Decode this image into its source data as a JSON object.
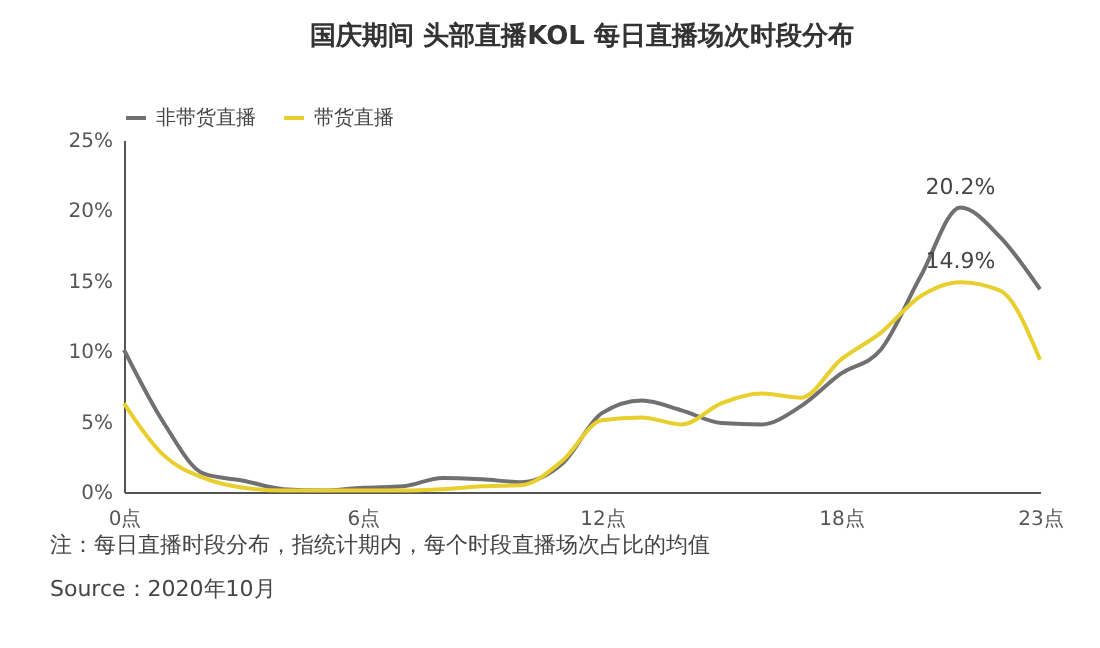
{
  "chart_data": {
    "type": "line",
    "title": "国庆期间 头部直播KOL 每日直播场次时段分布",
    "x": [
      0,
      1,
      2,
      3,
      4,
      5,
      6,
      7,
      8,
      9,
      10,
      11,
      12,
      13,
      14,
      15,
      16,
      17,
      18,
      19,
      20,
      21,
      22,
      23
    ],
    "series": [
      {
        "name": "非带货直播",
        "color": "#707070",
        "values": [
          10.1,
          4.9,
          1.3,
          0.8,
          0.2,
          0.1,
          0.3,
          0.4,
          1.0,
          0.9,
          0.7,
          2.0,
          5.6,
          6.5,
          5.8,
          4.9,
          4.8,
          6.1,
          8.4,
          10.1,
          15.3,
          20.2,
          18.1,
          14.4
        ]
      },
      {
        "name": "带货直播",
        "color": "#e8cf2e",
        "values": [
          6.3,
          2.6,
          1.0,
          0.3,
          0.1,
          0.1,
          0.1,
          0.1,
          0.2,
          0.4,
          0.5,
          2.2,
          5.1,
          5.3,
          4.8,
          6.3,
          7.0,
          6.7,
          9.4,
          11.3,
          13.9,
          14.9,
          14.3,
          9.4
        ]
      }
    ],
    "xlim": [
      0,
      23
    ],
    "xticks": [
      {
        "value": 0,
        "label": "0点"
      },
      {
        "value": 6,
        "label": "6点"
      },
      {
        "value": 12,
        "label": "12点"
      },
      {
        "value": 18,
        "label": "18点"
      },
      {
        "value": 23,
        "label": "23点"
      }
    ],
    "ylim": [
      0,
      25
    ],
    "yticks": [
      {
        "value": 0,
        "label": "0%"
      },
      {
        "value": 5,
        "label": "5%"
      },
      {
        "value": 10,
        "label": "10%"
      },
      {
        "value": 15,
        "label": "15%"
      },
      {
        "value": 20,
        "label": "20%"
      },
      {
        "value": 25,
        "label": "25%"
      }
    ],
    "legend": "top",
    "grid": false,
    "annotations": [
      {
        "text": "20.2%",
        "x": 21,
        "y": 20.2
      },
      {
        "text": "14.9%",
        "x": 21,
        "y": 14.9
      },
      "注：每日直播时段分布，指统计期内，每个时段直播场次占比的均值",
      "Source：2020年10月"
    ]
  }
}
